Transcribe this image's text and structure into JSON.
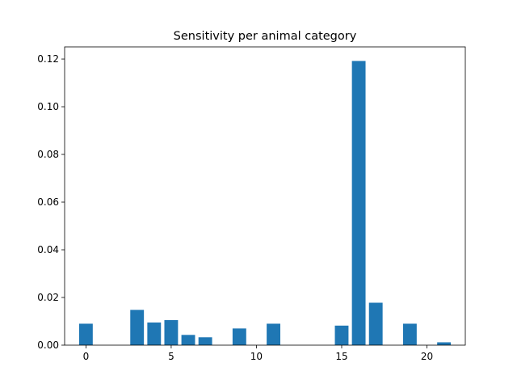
{
  "chart_data": {
    "type": "bar",
    "title": "Sensitivity per animal category",
    "xlabel": "",
    "ylabel": "",
    "x": [
      0,
      1,
      2,
      3,
      4,
      5,
      6,
      7,
      8,
      9,
      10,
      11,
      12,
      13,
      14,
      15,
      16,
      17,
      18,
      19,
      20,
      21
    ],
    "values": [
      0.009,
      0.0,
      0.0,
      0.0148,
      0.0095,
      0.0105,
      0.0043,
      0.0033,
      0.0,
      0.007,
      0.0,
      0.009,
      0.0,
      0.0,
      0.0,
      0.0082,
      0.1192,
      0.0178,
      0.0,
      0.009,
      0.0,
      0.0012
    ],
    "xlim": [
      -1.25,
      22.25
    ],
    "ylim": [
      0,
      0.1251
    ],
    "xticks": [
      0,
      5,
      10,
      15,
      20
    ],
    "xtick_labels": [
      "0",
      "5",
      "10",
      "15",
      "20"
    ],
    "yticks": [
      0.0,
      0.02,
      0.04,
      0.06,
      0.08,
      0.1,
      0.12
    ],
    "ytick_labels": [
      "0.00",
      "0.02",
      "0.04",
      "0.06",
      "0.08",
      "0.10",
      "0.12"
    ],
    "bar_color": "#1f77b4",
    "grid": false,
    "legend": false
  }
}
